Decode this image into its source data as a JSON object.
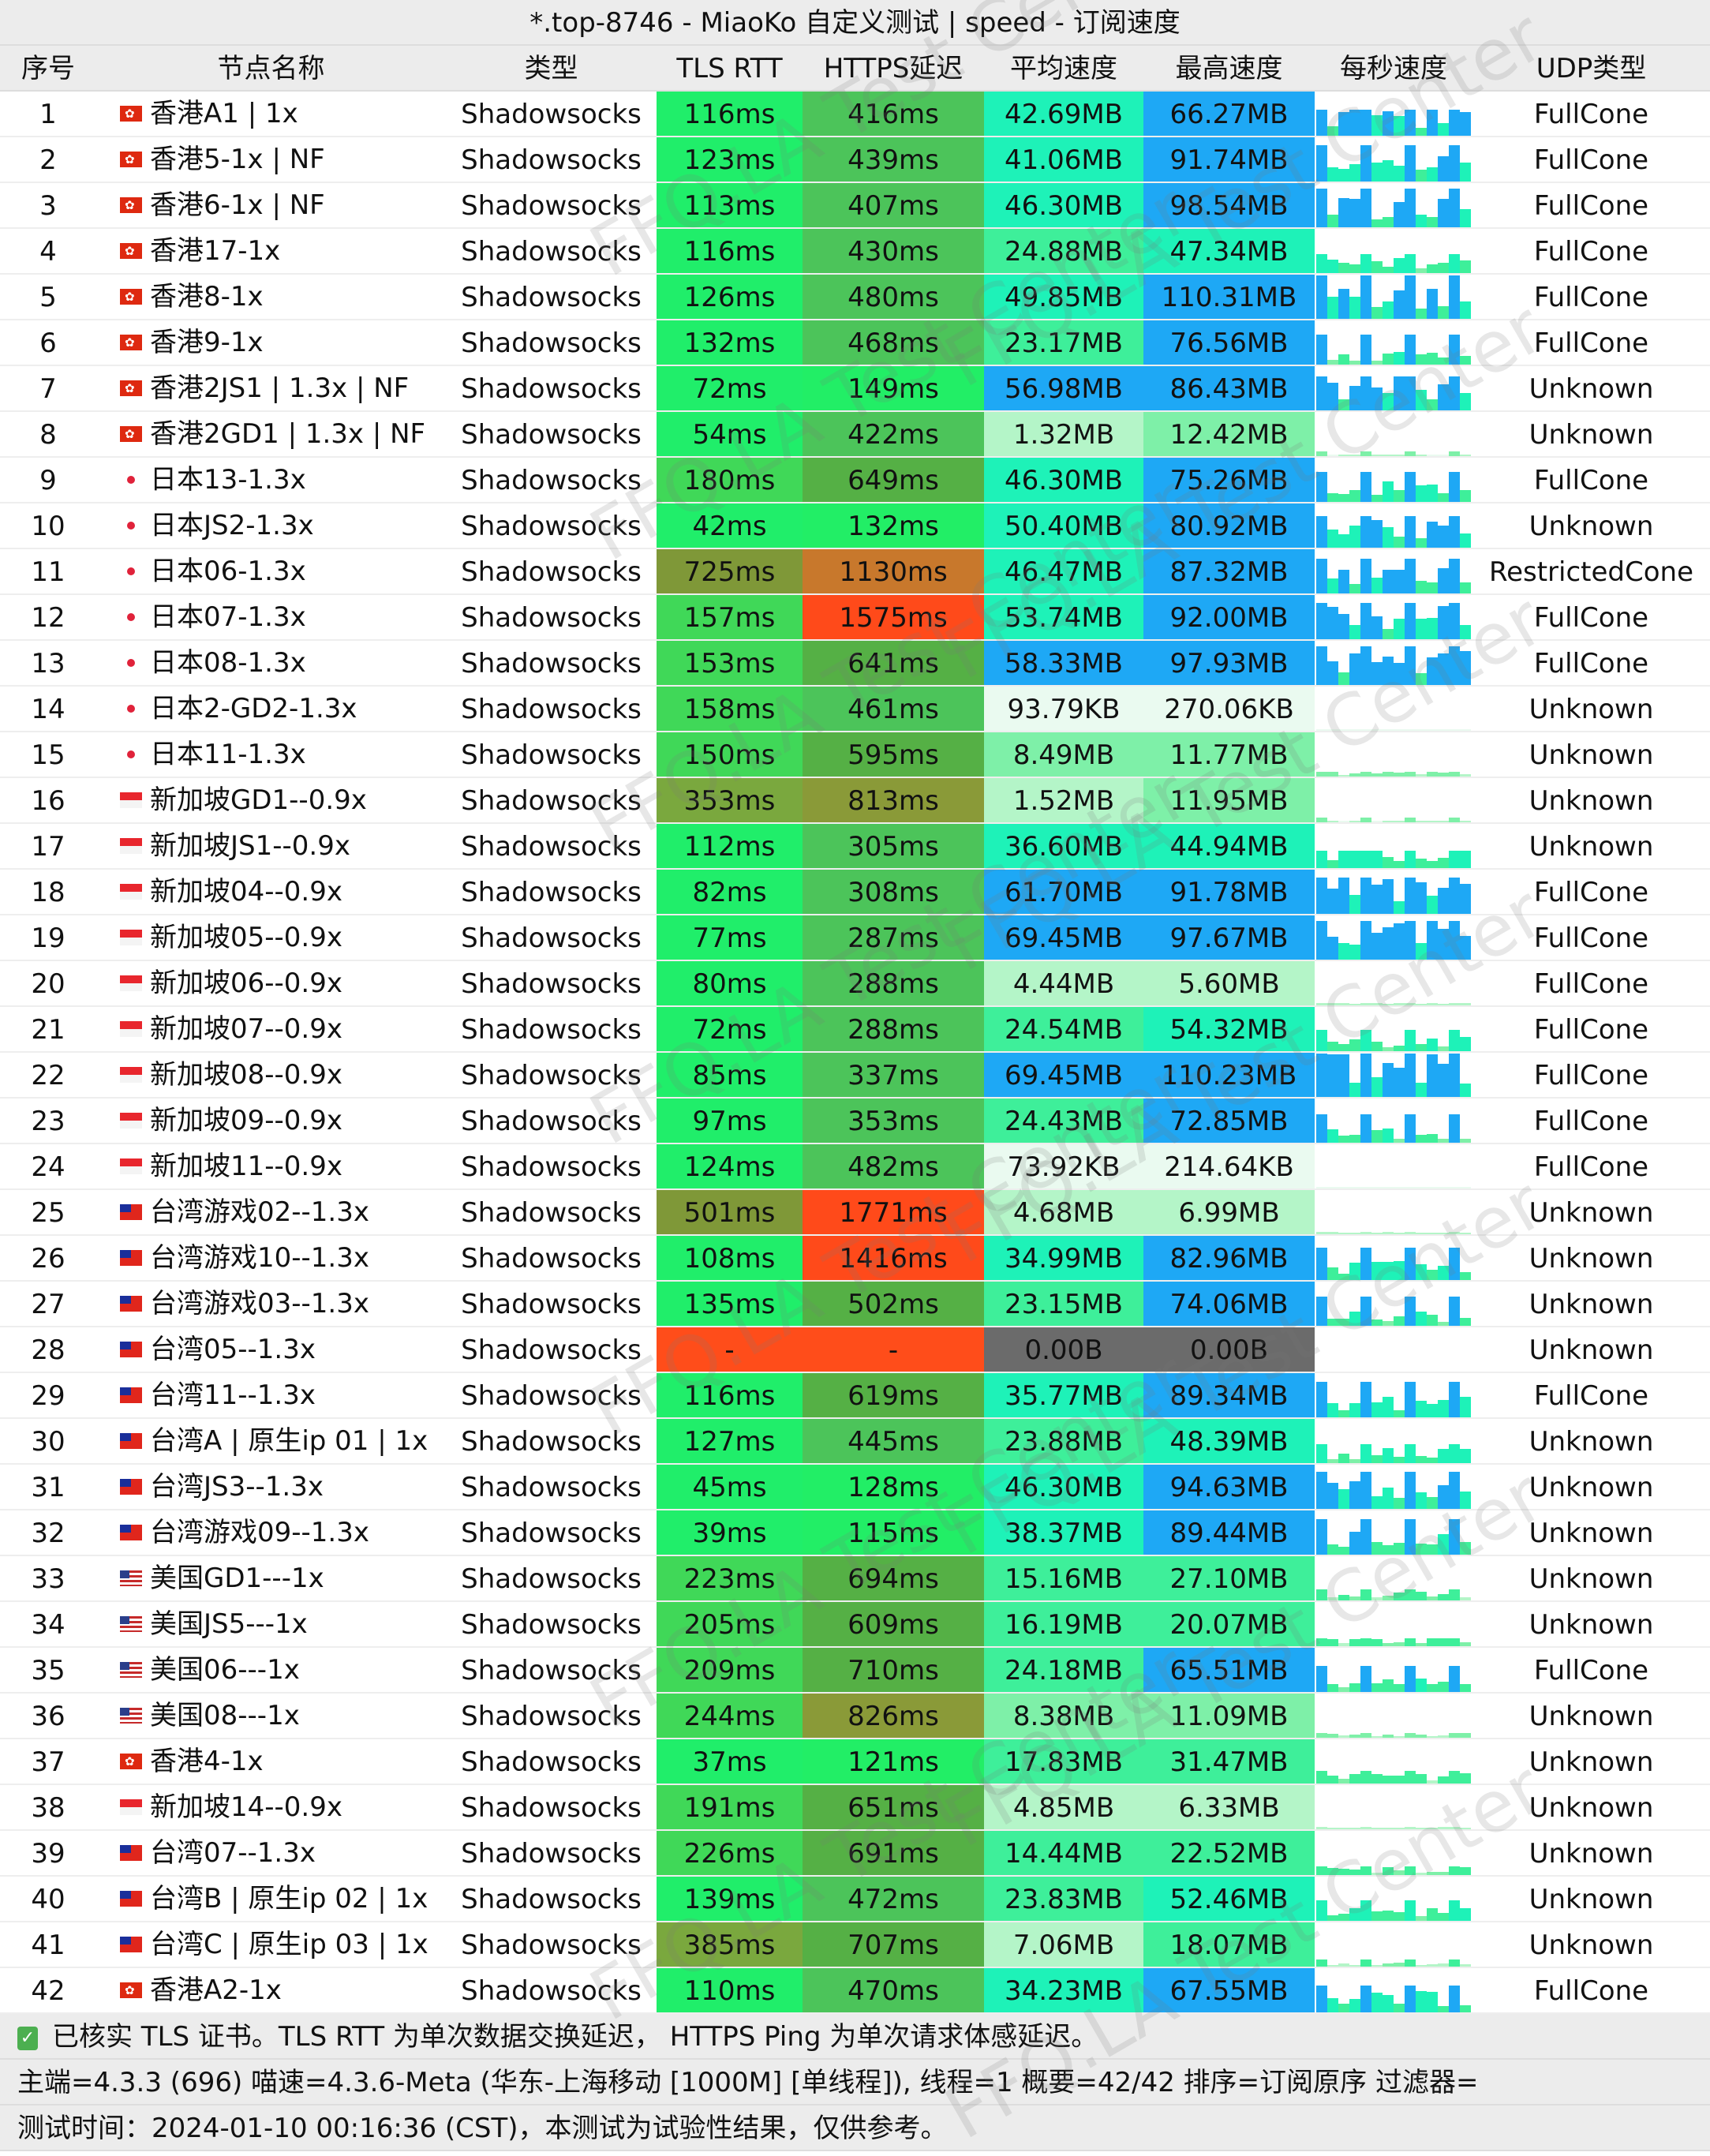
{
  "title": "*.top-8746 - MiaoKo 自定义测试 | speed - 订阅速度",
  "headers": [
    "序号",
    "节点名称",
    "类型",
    "TLS RTT",
    "HTTPS延迟",
    "平均速度",
    "最高速度",
    "每秒速度",
    "UDP类型"
  ],
  "rows": [
    {
      "i": "1",
      "flag": "hk",
      "name": "香港A1 | 1x",
      "type": "Shadowsocks",
      "tls": "116ms",
      "https": "416ms",
      "avg": "42.69MB",
      "max": "66.27MB",
      "udp": "FullCone"
    },
    {
      "i": "2",
      "flag": "hk",
      "name": "香港5-1x | NF",
      "type": "Shadowsocks",
      "tls": "123ms",
      "https": "439ms",
      "avg": "41.06MB",
      "max": "91.74MB",
      "udp": "FullCone"
    },
    {
      "i": "3",
      "flag": "hk",
      "name": "香港6-1x | NF",
      "type": "Shadowsocks",
      "tls": "113ms",
      "https": "407ms",
      "avg": "46.30MB",
      "max": "98.54MB",
      "udp": "FullCone"
    },
    {
      "i": "4",
      "flag": "hk",
      "name": "香港17-1x",
      "type": "Shadowsocks",
      "tls": "116ms",
      "https": "430ms",
      "avg": "24.88MB",
      "max": "47.34MB",
      "udp": "FullCone"
    },
    {
      "i": "5",
      "flag": "hk",
      "name": "香港8-1x",
      "type": "Shadowsocks",
      "tls": "126ms",
      "https": "480ms",
      "avg": "49.85MB",
      "max": "110.31MB",
      "udp": "FullCone"
    },
    {
      "i": "6",
      "flag": "hk",
      "name": "香港9-1x",
      "type": "Shadowsocks",
      "tls": "132ms",
      "https": "468ms",
      "avg": "23.17MB",
      "max": "76.56MB",
      "udp": "FullCone"
    },
    {
      "i": "7",
      "flag": "hk",
      "name": "香港2JS1 | 1.3x | NF",
      "type": "Shadowsocks",
      "tls": "72ms",
      "https": "149ms",
      "avg": "56.98MB",
      "max": "86.43MB",
      "udp": "Unknown"
    },
    {
      "i": "8",
      "flag": "hk",
      "name": "香港2GD1 | 1.3x | NF",
      "type": "Shadowsocks",
      "tls": "54ms",
      "https": "422ms",
      "avg": "1.32MB",
      "max": "12.42MB",
      "udp": "Unknown"
    },
    {
      "i": "9",
      "flag": "jp",
      "name": "日本13-1.3x",
      "type": "Shadowsocks",
      "tls": "180ms",
      "https": "649ms",
      "avg": "46.30MB",
      "max": "75.26MB",
      "udp": "FullCone"
    },
    {
      "i": "10",
      "flag": "jp",
      "name": "日本JS2-1.3x",
      "type": "Shadowsocks",
      "tls": "42ms",
      "https": "132ms",
      "avg": "50.40MB",
      "max": "80.92MB",
      "udp": "Unknown"
    },
    {
      "i": "11",
      "flag": "jp",
      "name": "日本06-1.3x",
      "type": "Shadowsocks",
      "tls": "725ms",
      "https": "1130ms",
      "avg": "46.47MB",
      "max": "87.32MB",
      "udp": "RestrictedCone"
    },
    {
      "i": "12",
      "flag": "jp",
      "name": "日本07-1.3x",
      "type": "Shadowsocks",
      "tls": "157ms",
      "https": "1575ms",
      "avg": "53.74MB",
      "max": "92.00MB",
      "udp": "FullCone"
    },
    {
      "i": "13",
      "flag": "jp",
      "name": "日本08-1.3x",
      "type": "Shadowsocks",
      "tls": "153ms",
      "https": "641ms",
      "avg": "58.33MB",
      "max": "97.93MB",
      "udp": "FullCone"
    },
    {
      "i": "14",
      "flag": "jp",
      "name": "日本2-GD2-1.3x",
      "type": "Shadowsocks",
      "tls": "158ms",
      "https": "461ms",
      "avg": "93.79KB",
      "max": "270.06KB",
      "udp": "Unknown"
    },
    {
      "i": "15",
      "flag": "jp",
      "name": "日本11-1.3x",
      "type": "Shadowsocks",
      "tls": "150ms",
      "https": "595ms",
      "avg": "8.49MB",
      "max": "11.77MB",
      "udp": "Unknown"
    },
    {
      "i": "16",
      "flag": "sg",
      "name": "新加坡GD1--0.9x",
      "type": "Shadowsocks",
      "tls": "353ms",
      "https": "813ms",
      "avg": "1.52MB",
      "max": "11.95MB",
      "udp": "Unknown"
    },
    {
      "i": "17",
      "flag": "sg",
      "name": "新加坡JS1--0.9x",
      "type": "Shadowsocks",
      "tls": "112ms",
      "https": "305ms",
      "avg": "36.60MB",
      "max": "44.94MB",
      "udp": "Unknown"
    },
    {
      "i": "18",
      "flag": "sg",
      "name": "新加坡04--0.9x",
      "type": "Shadowsocks",
      "tls": "82ms",
      "https": "308ms",
      "avg": "61.70MB",
      "max": "91.78MB",
      "udp": "FullCone"
    },
    {
      "i": "19",
      "flag": "sg",
      "name": "新加坡05--0.9x",
      "type": "Shadowsocks",
      "tls": "77ms",
      "https": "287ms",
      "avg": "69.45MB",
      "max": "97.67MB",
      "udp": "FullCone"
    },
    {
      "i": "20",
      "flag": "sg",
      "name": "新加坡06--0.9x",
      "type": "Shadowsocks",
      "tls": "80ms",
      "https": "288ms",
      "avg": "4.44MB",
      "max": "5.60MB",
      "udp": "FullCone"
    },
    {
      "i": "21",
      "flag": "sg",
      "name": "新加坡07--0.9x",
      "type": "Shadowsocks",
      "tls": "72ms",
      "https": "288ms",
      "avg": "24.54MB",
      "max": "54.32MB",
      "udp": "FullCone"
    },
    {
      "i": "22",
      "flag": "sg",
      "name": "新加坡08--0.9x",
      "type": "Shadowsocks",
      "tls": "85ms",
      "https": "337ms",
      "avg": "69.45MB",
      "max": "110.23MB",
      "udp": "FullCone"
    },
    {
      "i": "23",
      "flag": "sg",
      "name": "新加坡09--0.9x",
      "type": "Shadowsocks",
      "tls": "97ms",
      "https": "353ms",
      "avg": "24.43MB",
      "max": "72.85MB",
      "udp": "FullCone"
    },
    {
      "i": "24",
      "flag": "sg",
      "name": "新加坡11--0.9x",
      "type": "Shadowsocks",
      "tls": "124ms",
      "https": "482ms",
      "avg": "73.92KB",
      "max": "214.64KB",
      "udp": "FullCone"
    },
    {
      "i": "25",
      "flag": "tw",
      "name": "台湾游戏02--1.3x",
      "type": "Shadowsocks",
      "tls": "501ms",
      "https": "1771ms",
      "avg": "4.68MB",
      "max": "6.99MB",
      "udp": "Unknown"
    },
    {
      "i": "26",
      "flag": "tw",
      "name": "台湾游戏10--1.3x",
      "type": "Shadowsocks",
      "tls": "108ms",
      "https": "1416ms",
      "avg": "34.99MB",
      "max": "82.96MB",
      "udp": "Unknown"
    },
    {
      "i": "27",
      "flag": "tw",
      "name": "台湾游戏03--1.3x",
      "type": "Shadowsocks",
      "tls": "135ms",
      "https": "502ms",
      "avg": "23.15MB",
      "max": "74.06MB",
      "udp": "Unknown"
    },
    {
      "i": "28",
      "flag": "tw",
      "name": "台湾05--1.3x",
      "type": "Shadowsocks",
      "tls": "-",
      "https": "-",
      "avg": "0.00B",
      "max": "0.00B",
      "udp": "Unknown"
    },
    {
      "i": "29",
      "flag": "tw",
      "name": "台湾11--1.3x",
      "type": "Shadowsocks",
      "tls": "116ms",
      "https": "619ms",
      "avg": "35.77MB",
      "max": "89.34MB",
      "udp": "FullCone"
    },
    {
      "i": "30",
      "flag": "tw",
      "name": "台湾A | 原生ip 01 | 1x",
      "type": "Shadowsocks",
      "tls": "127ms",
      "https": "445ms",
      "avg": "23.88MB",
      "max": "48.39MB",
      "udp": "Unknown"
    },
    {
      "i": "31",
      "flag": "tw",
      "name": "台湾JS3--1.3x",
      "type": "Shadowsocks",
      "tls": "45ms",
      "https": "128ms",
      "avg": "46.30MB",
      "max": "94.63MB",
      "udp": "Unknown"
    },
    {
      "i": "32",
      "flag": "tw",
      "name": "台湾游戏09--1.3x",
      "type": "Shadowsocks",
      "tls": "39ms",
      "https": "115ms",
      "avg": "38.37MB",
      "max": "89.44MB",
      "udp": "Unknown"
    },
    {
      "i": "33",
      "flag": "us",
      "name": "美国GD1---1x",
      "type": "Shadowsocks",
      "tls": "223ms",
      "https": "694ms",
      "avg": "15.16MB",
      "max": "27.10MB",
      "udp": "Unknown"
    },
    {
      "i": "34",
      "flag": "us",
      "name": "美国JS5---1x",
      "type": "Shadowsocks",
      "tls": "205ms",
      "https": "609ms",
      "avg": "16.19MB",
      "max": "20.07MB",
      "udp": "Unknown"
    },
    {
      "i": "35",
      "flag": "us",
      "name": "美国06---1x",
      "type": "Shadowsocks",
      "tls": "209ms",
      "https": "710ms",
      "avg": "24.18MB",
      "max": "65.51MB",
      "udp": "FullCone"
    },
    {
      "i": "36",
      "flag": "us",
      "name": "美国08---1x",
      "type": "Shadowsocks",
      "tls": "244ms",
      "https": "826ms",
      "avg": "8.38MB",
      "max": "11.09MB",
      "udp": "Unknown"
    },
    {
      "i": "37",
      "flag": "hk",
      "name": "香港4-1x",
      "type": "Shadowsocks",
      "tls": "37ms",
      "https": "121ms",
      "avg": "17.83MB",
      "max": "31.47MB",
      "udp": "Unknown"
    },
    {
      "i": "38",
      "flag": "sg",
      "name": "新加坡14--0.9x",
      "type": "Shadowsocks",
      "tls": "191ms",
      "https": "651ms",
      "avg": "4.85MB",
      "max": "6.33MB",
      "udp": "Unknown"
    },
    {
      "i": "39",
      "flag": "tw",
      "name": "台湾07--1.3x",
      "type": "Shadowsocks",
      "tls": "226ms",
      "https": "691ms",
      "avg": "14.44MB",
      "max": "22.52MB",
      "udp": "Unknown"
    },
    {
      "i": "40",
      "flag": "tw",
      "name": "台湾B | 原生ip 02 | 1x",
      "type": "Shadowsocks",
      "tls": "139ms",
      "https": "472ms",
      "avg": "23.83MB",
      "max": "52.46MB",
      "udp": "Unknown"
    },
    {
      "i": "41",
      "flag": "tw",
      "name": "台湾C | 原生ip 03 | 1x",
      "type": "Shadowsocks",
      "tls": "385ms",
      "https": "707ms",
      "avg": "7.06MB",
      "max": "18.07MB",
      "udp": "Unknown"
    },
    {
      "i": "42",
      "flag": "hk",
      "name": "香港A2-1x",
      "type": "Shadowsocks",
      "tls": "110ms",
      "https": "470ms",
      "avg": "34.23MB",
      "max": "67.55MB",
      "udp": "FullCone"
    }
  ],
  "footer": {
    "line1": "已核实 TLS 证书。TLS RTT 为单次数据交换延迟， HTTPS Ping 为单次请求体感延迟。",
    "line2": "主端=4.3.3 (696) 喵速=4.3.6-Meta (华东-上海移动 [1000M] [单线程]), 线程=1 概要=42/42 排序=订阅原序 过滤器=",
    "line3": "测试时间：2024-01-10 00:16:36 (CST)，本测试为试验性结果，仅供参考。"
  },
  "watermark": "FFQ.LA Test Center",
  "colors": {
    "fail": "#ff4d1a",
    "zero": "#6b6b6b",
    "fast": "#1ea8f5",
    "good": "#1ef2b8"
  }
}
